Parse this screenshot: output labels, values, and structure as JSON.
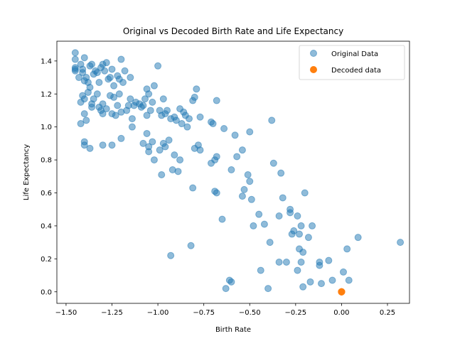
{
  "chart_data": {
    "type": "scatter",
    "title": "Original vs Decoded Birth Rate and Life Expectancy",
    "xlabel": "Birth Rate",
    "ylabel": "Life Expectancy",
    "xlim": [
      -1.55,
      0.37
    ],
    "ylim": [
      -0.07,
      1.52
    ],
    "xticks": [
      -1.5,
      -1.25,
      -1.0,
      -0.75,
      -0.5,
      -0.25,
      0.0,
      0.25
    ],
    "xtick_labels": [
      "−1.50",
      "−1.25",
      "−1.00",
      "−0.75",
      "−0.50",
      "−0.25",
      "0.00",
      "0.25"
    ],
    "yticks": [
      0.0,
      0.2,
      0.4,
      0.6,
      0.8,
      1.0,
      1.2,
      1.4
    ],
    "ytick_labels": [
      "0.0",
      "0.2",
      "0.4",
      "0.6",
      "0.8",
      "1.0",
      "1.2",
      "1.4"
    ],
    "grid": false,
    "legend_position": "top-right",
    "series": [
      {
        "name": "Original Data",
        "color": "#1f77b4",
        "alpha": 0.5,
        "marker": "circle",
        "points": [
          [
            -1.45,
            1.45
          ],
          [
            -1.45,
            1.41
          ],
          [
            -1.45,
            1.36
          ],
          [
            -1.45,
            1.34
          ],
          [
            -1.45,
            1.35
          ],
          [
            -1.43,
            1.3
          ],
          [
            -1.42,
            1.38
          ],
          [
            -1.41,
            1.33
          ],
          [
            -1.41,
            1.35
          ],
          [
            -1.4,
            1.42
          ],
          [
            -1.4,
            1.28
          ],
          [
            -1.39,
            1.3
          ],
          [
            -1.38,
            1.27
          ],
          [
            -1.37,
            1.37
          ],
          [
            -1.36,
            1.38
          ],
          [
            -1.35,
            1.32
          ],
          [
            -1.34,
            1.34
          ],
          [
            -1.33,
            1.33
          ],
          [
            -1.32,
            1.27
          ],
          [
            -1.31,
            1.36
          ],
          [
            -1.3,
            1.38
          ],
          [
            -1.29,
            1.34
          ],
          [
            -1.28,
            1.39
          ],
          [
            -1.27,
            1.29
          ],
          [
            -1.26,
            1.3
          ],
          [
            -1.25,
            1.35
          ],
          [
            -1.24,
            1.25
          ],
          [
            -1.22,
            1.31
          ],
          [
            -1.21,
            1.29
          ],
          [
            -1.2,
            1.41
          ],
          [
            -1.19,
            1.27
          ],
          [
            -1.18,
            1.34
          ],
          [
            -1.15,
            1.3
          ],
          [
            -1.42,
            1.15
          ],
          [
            -1.41,
            1.19
          ],
          [
            -1.4,
            1.17
          ],
          [
            -1.38,
            1.21
          ],
          [
            -1.37,
            1.24
          ],
          [
            -1.36,
            1.14
          ],
          [
            -1.35,
            1.17
          ],
          [
            -1.33,
            1.2
          ],
          [
            -1.32,
            1.12
          ],
          [
            -1.31,
            1.1
          ],
          [
            -1.3,
            1.08
          ],
          [
            -1.3,
            1.14
          ],
          [
            -1.28,
            1.11
          ],
          [
            -1.26,
            1.19
          ],
          [
            -1.25,
            1.08
          ],
          [
            -1.24,
            1.18
          ],
          [
            -1.23,
            1.07
          ],
          [
            -1.22,
            1.13
          ],
          [
            -1.21,
            1.2
          ],
          [
            -1.2,
            1.09
          ],
          [
            -1.17,
            1.1
          ],
          [
            -1.16,
            1.13
          ],
          [
            -1.15,
            1.17
          ],
          [
            -1.14,
            1.05
          ],
          [
            -1.13,
            1.13
          ],
          [
            -1.12,
            1.15
          ],
          [
            -1.1,
            1.14
          ],
          [
            -1.09,
            1.12
          ],
          [
            -1.08,
            1.13
          ],
          [
            -1.07,
            1.17
          ],
          [
            -1.06,
            1.07
          ],
          [
            -1.05,
            1.2
          ],
          [
            -1.04,
            1.1
          ],
          [
            -1.03,
            1.15
          ],
          [
            -1.02,
            1.25
          ],
          [
            -1.0,
            1.37
          ],
          [
            -0.99,
            1.1
          ],
          [
            -0.98,
            1.07
          ],
          [
            -0.97,
            1.17
          ],
          [
            -0.96,
            1.08
          ],
          [
            -0.95,
            1.1
          ],
          [
            -0.93,
            1.05
          ],
          [
            -0.91,
            1.06
          ],
          [
            -0.9,
            1.04
          ],
          [
            -0.88,
            1.11
          ],
          [
            -0.87,
            1.02
          ],
          [
            -0.86,
            1.09
          ],
          [
            -0.85,
            1.07
          ],
          [
            -0.84,
            1.0
          ],
          [
            -0.83,
            1.05
          ],
          [
            -0.81,
            1.16
          ],
          [
            -0.8,
            1.18
          ],
          [
            -0.79,
            1.23
          ],
          [
            -0.77,
            1.06
          ],
          [
            -1.42,
            1.02
          ],
          [
            -1.4,
            1.08
          ],
          [
            -1.39,
            1.04
          ],
          [
            -1.36,
            1.12
          ],
          [
            -1.06,
            1.23
          ],
          [
            -0.71,
            1.03
          ],
          [
            -0.7,
            1.02
          ],
          [
            -0.68,
            1.16
          ],
          [
            -0.64,
            0.99
          ],
          [
            -0.58,
            0.95
          ],
          [
            -0.5,
            0.97
          ],
          [
            -0.38,
            1.04
          ],
          [
            -1.4,
            0.91
          ],
          [
            -1.4,
            0.89
          ],
          [
            -1.37,
            0.87
          ],
          [
            -1.3,
            0.89
          ],
          [
            -1.25,
            0.89
          ],
          [
            -1.2,
            0.93
          ],
          [
            -1.14,
            1.0
          ],
          [
            -1.08,
            0.9
          ],
          [
            -1.06,
            0.96
          ],
          [
            -1.05,
            0.88
          ],
          [
            -1.05,
            0.85
          ],
          [
            -1.03,
            0.91
          ],
          [
            -1.02,
            0.8
          ],
          [
            -0.99,
            0.86
          ],
          [
            -0.97,
            0.9
          ],
          [
            -0.96,
            0.88
          ],
          [
            -0.94,
            0.92
          ],
          [
            -0.91,
            0.83
          ],
          [
            -0.88,
            0.8
          ],
          [
            -0.92,
            0.74
          ],
          [
            -0.89,
            0.73
          ],
          [
            -0.98,
            0.71
          ],
          [
            -0.8,
            0.87
          ],
          [
            -0.78,
            0.89
          ],
          [
            -0.77,
            0.86
          ],
          [
            -0.71,
            0.78
          ],
          [
            -0.69,
            0.8
          ],
          [
            -0.68,
            0.82
          ],
          [
            -0.6,
            0.74
          ],
          [
            -0.57,
            0.82
          ],
          [
            -0.54,
            0.86
          ],
          [
            -0.51,
            0.71
          ],
          [
            -0.5,
            0.67
          ],
          [
            -0.37,
            0.78
          ],
          [
            -0.33,
            0.72
          ],
          [
            -0.69,
            0.61
          ],
          [
            -0.68,
            0.6
          ],
          [
            -0.53,
            0.62
          ],
          [
            -0.54,
            0.58
          ],
          [
            -0.49,
            0.56
          ],
          [
            -0.2,
            0.6
          ],
          [
            -0.32,
            0.57
          ],
          [
            -0.81,
            0.63
          ],
          [
            -0.45,
            0.47
          ],
          [
            -0.42,
            0.41
          ],
          [
            -0.48,
            0.4
          ],
          [
            -0.34,
            0.46
          ],
          [
            -0.28,
            0.48
          ],
          [
            -0.28,
            0.5
          ],
          [
            -0.24,
            0.46
          ],
          [
            -0.22,
            0.4
          ],
          [
            -0.16,
            0.4
          ],
          [
            -0.65,
            0.44
          ],
          [
            -0.26,
            0.37
          ],
          [
            -0.27,
            0.35
          ],
          [
            -0.23,
            0.35
          ],
          [
            -0.18,
            0.33
          ],
          [
            -0.23,
            0.26
          ],
          [
            -0.21,
            0.24
          ],
          [
            -0.39,
            0.3
          ],
          [
            -0.34,
            0.18
          ],
          [
            -0.3,
            0.18
          ],
          [
            -0.22,
            0.18
          ],
          [
            -0.93,
            0.22
          ],
          [
            -0.82,
            0.28
          ],
          [
            -0.12,
            0.18
          ],
          [
            -0.12,
            0.16
          ],
          [
            -0.07,
            0.19
          ],
          [
            -0.44,
            0.13
          ],
          [
            -0.24,
            0.13
          ],
          [
            0.09,
            0.33
          ],
          [
            0.03,
            0.26
          ],
          [
            0.32,
            0.3
          ],
          [
            -0.17,
            0.06
          ],
          [
            -0.11,
            0.05
          ],
          [
            -0.05,
            0.07
          ],
          [
            0.01,
            0.12
          ],
          [
            0.04,
            0.07
          ],
          [
            -0.6,
            0.06
          ],
          [
            -0.61,
            0.07
          ],
          [
            -0.63,
            0.02
          ],
          [
            -0.4,
            0.02
          ],
          [
            -0.21,
            0.03
          ]
        ]
      },
      {
        "name": "Decoded data",
        "color": "#ff7f0e",
        "alpha": 1.0,
        "marker": "circle",
        "points": [
          [
            0.0,
            0.0
          ],
          [
            0.0,
            0.0
          ],
          [
            0.0,
            0.0
          ],
          [
            0.0,
            0.0
          ],
          [
            0.0,
            0.0
          ]
        ]
      }
    ]
  }
}
